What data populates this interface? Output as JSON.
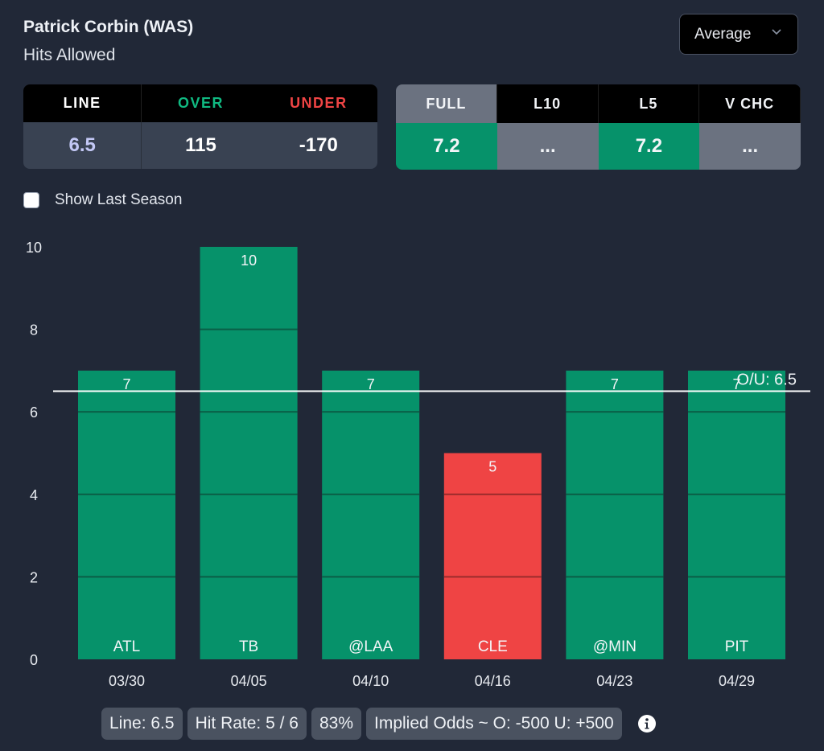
{
  "header": {
    "title": "Patrick Corbin (WAS)",
    "subtitle": "Hits Allowed",
    "dropdown": {
      "selected": "Average",
      "icon": "chevron-down-icon"
    }
  },
  "odds": {
    "headers": [
      {
        "label": "LINE",
        "color": "#ffffff"
      },
      {
        "label": "OVER",
        "color": "#10b981"
      },
      {
        "label": "UNDER",
        "color": "#ef4444"
      }
    ],
    "values": [
      {
        "value": "6.5",
        "color": "#c3c8f5"
      },
      {
        "value": "115",
        "color": "#ffffff"
      },
      {
        "value": "-170",
        "color": "#ffffff"
      }
    ]
  },
  "averages": {
    "headers": [
      "FULL",
      "L10",
      "L5",
      "V CHC"
    ],
    "active_index": 0,
    "values": [
      {
        "value": "7.2",
        "status": "green"
      },
      {
        "value": "...",
        "status": "neutral"
      },
      {
        "value": "7.2",
        "status": "green"
      },
      {
        "value": "...",
        "status": "neutral"
      }
    ]
  },
  "show_last_season": {
    "label": "Show Last Season",
    "checked": false
  },
  "colors": {
    "over": "#06926a",
    "under": "#ef4444",
    "background": "#212837"
  },
  "chart_data": {
    "type": "bar",
    "title": "",
    "xlabel": "",
    "ylabel": "",
    "categories": [
      "03/30",
      "04/05",
      "04/10",
      "04/16",
      "04/23",
      "04/29"
    ],
    "opponents": [
      "ATL",
      "TB",
      "@LAA",
      "CLE",
      "@MIN",
      "PIT"
    ],
    "values": [
      7,
      10,
      7,
      5,
      7,
      7
    ],
    "ylim": [
      0,
      10
    ],
    "yticks": [
      0,
      2,
      4,
      6,
      8,
      10
    ],
    "grid": false,
    "reference_line": {
      "value": 6.5,
      "label": "O/U: 6.5"
    }
  },
  "summary": {
    "line": "Line: 6.5",
    "hit_rate": "Hit Rate: 5 / 6",
    "percent": "83%",
    "implied_odds": "Implied Odds ~ O: -500 U: +500"
  }
}
